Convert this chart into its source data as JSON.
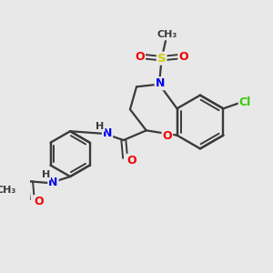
{
  "background_color": "#e8e8e8",
  "bond_color": "#3a3a3a",
  "atom_colors": {
    "N": "#0000ee",
    "O": "#ee0000",
    "S": "#cccc00",
    "Cl": "#33cc00",
    "C": "#3a3a3a",
    "H": "#3a3a3a"
  },
  "figsize": [
    3.0,
    3.0
  ],
  "dpi": 100
}
